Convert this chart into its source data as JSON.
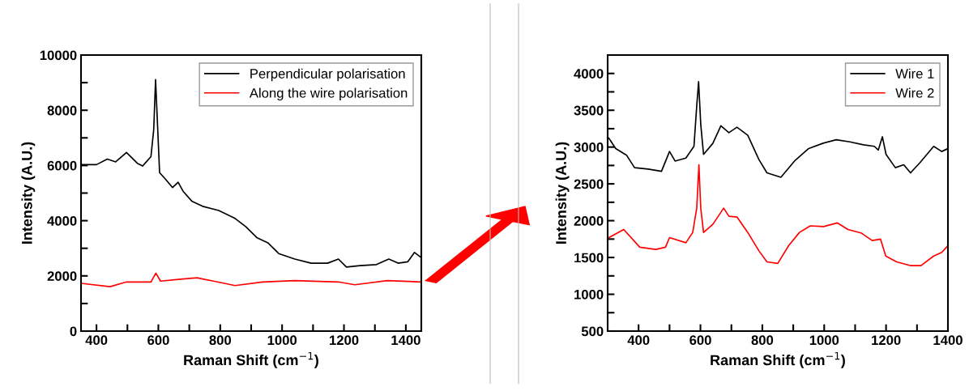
{
  "chart_data": [
    {
      "type": "line",
      "xlabel": "Raman Shift (cm$^{−1}$)",
      "ylabel": "Intensity (A.U.)",
      "xlim": [
        350,
        1450
      ],
      "ylim": [
        0,
        10000
      ],
      "xticks": [
        400,
        {
          "value": 500,
          "label": null
        },
        600,
        {
          "value": 700,
          "label": null
        },
        800,
        {
          "value": 900,
          "label": null
        },
        1000,
        {
          "value": 1100,
          "label": null
        },
        1200,
        {
          "value": 1300,
          "label": null
        },
        1400
      ],
      "yticks": [
        0,
        {
          "value": 1000,
          "label": null
        },
        2000,
        {
          "value": 3000,
          "label": null
        },
        4000,
        {
          "value": 5000,
          "label": null
        },
        6000,
        {
          "value": 7000,
          "label": null
        },
        8000,
        {
          "value": 9000,
          "label": null
        },
        10000
      ],
      "legend": "top right",
      "grid": false,
      "series": [
        {
          "name": "Perpendicular polarisation",
          "color": "#000000",
          "x": [
            350,
            400,
            435,
            462,
            497,
            532,
            549,
            576,
            585,
            591,
            598,
            604,
            624,
            646,
            664,
            681,
            708,
            743,
            795,
            848,
            883,
            918,
            954,
            989,
            1041,
            1094,
            1147,
            1182,
            1208,
            1252,
            1305,
            1345,
            1375,
            1406,
            1428,
            1450
          ],
          "values": [
            6030,
            6030,
            6230,
            6130,
            6470,
            6080,
            5980,
            6320,
            7300,
            9110,
            7300,
            5740,
            5490,
            5200,
            5390,
            5050,
            4710,
            4520,
            4370,
            4080,
            3780,
            3390,
            3200,
            2810,
            2610,
            2460,
            2460,
            2610,
            2320,
            2370,
            2410,
            2610,
            2460,
            2510,
            2850,
            2660
          ]
        },
        {
          "name": "Along the wire polarisation",
          "color": "#ff0000",
          "x": [
            350,
            444,
            497,
            576,
            592,
            607,
            672,
            725,
            778,
            848,
            936,
            1041,
            1182,
            1235,
            1340,
            1450
          ],
          "values": [
            1730,
            1610,
            1780,
            1780,
            2100,
            1810,
            1880,
            1930,
            1810,
            1650,
            1780,
            1830,
            1780,
            1680,
            1830,
            1780
          ]
        }
      ]
    },
    {
      "type": "line",
      "xlabel": "Raman Shift (cm$^{−1}$)",
      "ylabel": "Intensity (A.U.)",
      "xlim": [
        300,
        1400
      ],
      "ylim": [
        500,
        4250
      ],
      "xticks": [
        400,
        {
          "value": 500,
          "label": null
        },
        600,
        {
          "value": 700,
          "label": null
        },
        800,
        {
          "value": 900,
          "label": null
        },
        1000,
        {
          "value": 1100,
          "label": null
        },
        1200,
        {
          "value": 1300,
          "label": null
        },
        1400
      ],
      "yticks": [
        500,
        {
          "value": 750,
          "label": null
        },
        1000,
        {
          "value": 1250,
          "label": null
        },
        1500,
        {
          "value": 1750,
          "label": null
        },
        2000,
        {
          "value": 2250,
          "label": null
        },
        2500,
        {
          "value": 2750,
          "label": null
        },
        3000,
        {
          "value": 3250,
          "label": null
        },
        3500,
        {
          "value": 3750,
          "label": null
        },
        4000
      ],
      "legend": "top right",
      "grid": false,
      "series": [
        {
          "name": "Wire 1",
          "color": "#000000",
          "x": [
            304,
            326,
            361,
            387,
            431,
            474,
            500,
            518,
            553,
            579,
            588,
            594,
            601,
            610,
            640,
            666,
            692,
            718,
            753,
            789,
            815,
            860,
            904,
            950,
            995,
            1039,
            1083,
            1127,
            1162,
            1175,
            1188,
            1200,
            1230,
            1257,
            1279,
            1310,
            1354,
            1380,
            1400
          ],
          "values": [
            3120,
            2980,
            2890,
            2720,
            2700,
            2670,
            2940,
            2810,
            2850,
            3010,
            3560,
            3890,
            3305,
            2900,
            3050,
            3290,
            3195,
            3270,
            3160,
            2830,
            2650,
            2590,
            2810,
            2980,
            3050,
            3100,
            3070,
            3030,
            3010,
            2960,
            3140,
            2900,
            2720,
            2760,
            2650,
            2790,
            3010,
            2940,
            2980
          ]
        },
        {
          "name": "Wire 2",
          "color": "#ff0000",
          "x": [
            304,
            352,
            404,
            456,
            487,
            500,
            553,
            575,
            588,
            595,
            601,
            610,
            640,
            675,
            692,
            718,
            753,
            789,
            815,
            850,
            885,
            920,
            955,
            998,
            1042,
            1077,
            1121,
            1155,
            1182,
            1199,
            1234,
            1278,
            1313,
            1354,
            1380,
            1400
          ],
          "values": [
            1770,
            1880,
            1640,
            1610,
            1640,
            1770,
            1700,
            1840,
            2170,
            2760,
            2170,
            1840,
            1950,
            2170,
            2060,
            2050,
            1840,
            1590,
            1440,
            1420,
            1660,
            1840,
            1930,
            1920,
            1970,
            1880,
            1830,
            1730,
            1750,
            1520,
            1440,
            1390,
            1390,
            1520,
            1570,
            1660
          ]
        }
      ]
    }
  ]
}
